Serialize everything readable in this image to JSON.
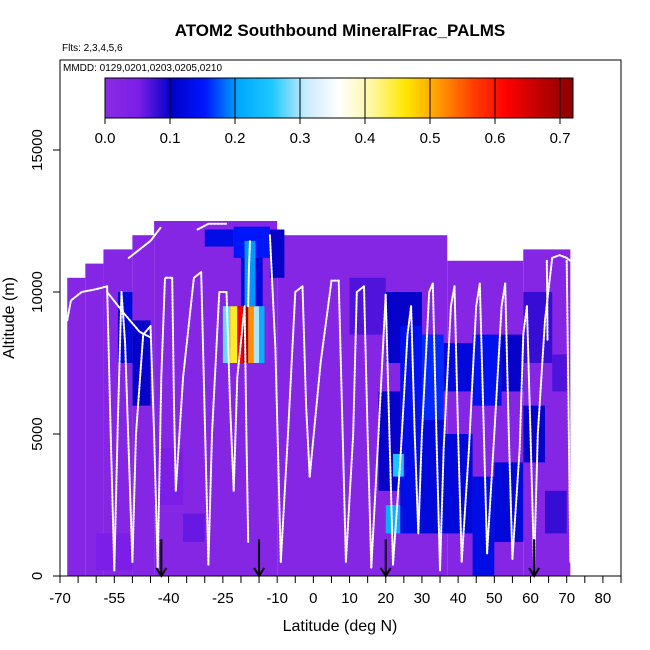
{
  "chart_data": {
    "type": "heatmap",
    "title": "ATOM2 Southbound MineralFrac_PALMS",
    "subtitle_flights": "Flts: 2,3,4,5,6",
    "subtitle_dates": "MMDD: 0129,0201,0203,0205,0210",
    "xlabel": "Latitude (deg N)",
    "ylabel": "Altitude (m)",
    "xlim": [
      -70,
      85
    ],
    "ylim": [
      0,
      17500
    ],
    "x_ticks": [
      -70,
      -55,
      -40,
      -25,
      -10,
      0,
      10,
      20,
      30,
      40,
      50,
      60,
      70,
      80
    ],
    "x_minor_ticks": [
      -65,
      -60,
      -50,
      -45,
      -35,
      -30,
      -20,
      -15,
      -5,
      5,
      15,
      25,
      35,
      45,
      55,
      65,
      75,
      85
    ],
    "y_ticks": [
      0,
      5000,
      10000,
      15000
    ],
    "grid": false,
    "colorbar": {
      "orientation": "horizontal",
      "placement": "top-inside",
      "min": 0.0,
      "max": 0.72,
      "ticks": [
        0.0,
        0.1,
        0.2,
        0.3,
        0.4,
        0.5,
        0.6,
        0.7
      ],
      "tick_labels": [
        "0.0",
        "0.1",
        "0.2",
        "0.3",
        "0.4",
        "0.5",
        "0.6",
        "0.7"
      ],
      "colors": [
        "#8a2be2",
        "#7c1ee8",
        "#0000c8",
        "#0018ff",
        "#00a8ff",
        "#1ec8ff",
        "#c8ebff",
        "#ffffff",
        "#fff7a0",
        "#ffe600",
        "#ff9900",
        "#ff4000",
        "#ff0000",
        "#c00000",
        "#8b0000"
      ]
    },
    "coverage_region": {
      "description_lat_range": [
        -68,
        71
      ],
      "description_alt_range": [
        0,
        12500
      ],
      "background_value": 0.02
    },
    "cells": [
      {
        "x0": -54,
        "x1": -50,
        "y0": 7500,
        "y1": 10000,
        "v": 0.12
      },
      {
        "x0": -50,
        "x1": -45,
        "y0": 6000,
        "y1": 9000,
        "v": 0.1
      },
      {
        "x0": -30,
        "x1": -22,
        "y0": 11600,
        "y1": 12200,
        "v": 0.13
      },
      {
        "x0": -22,
        "x1": -12,
        "y0": 11200,
        "y1": 12300,
        "v": 0.15
      },
      {
        "x0": -20,
        "x1": -14,
        "y0": 9000,
        "y1": 11200,
        "v": 0.12
      },
      {
        "x0": -24,
        "x1": -18,
        "y0": 8000,
        "y1": 9500,
        "v": 0.1
      },
      {
        "x0": -12,
        "x1": -8,
        "y0": 10500,
        "y1": 12200,
        "v": 0.1
      },
      {
        "x0": -44,
        "x1": -36,
        "y0": 2500,
        "y1": 4500,
        "v": 0.05
      },
      {
        "x0": -36,
        "x1": -30,
        "y0": 1200,
        "y1": 2200,
        "v": 0.06
      },
      {
        "x0": -60,
        "x1": -50,
        "y0": 200,
        "y1": 1500,
        "v": 0.05
      },
      {
        "x0": 10,
        "x1": 20,
        "y0": 8500,
        "y1": 10500,
        "v": 0.07
      },
      {
        "x0": 20,
        "x1": 30,
        "y0": 7500,
        "y1": 10000,
        "v": 0.1
      },
      {
        "x0": 24,
        "x1": 30,
        "y0": 5500,
        "y1": 8800,
        "v": 0.14
      },
      {
        "x0": 30,
        "x1": 36,
        "y0": 5500,
        "y1": 8500,
        "v": 0.16
      },
      {
        "x0": 36,
        "x1": 44,
        "y0": 6500,
        "y1": 8200,
        "v": 0.12
      },
      {
        "x0": 44,
        "x1": 52,
        "y0": 6000,
        "y1": 8500,
        "v": 0.14
      },
      {
        "x0": 52,
        "x1": 58,
        "y0": 6500,
        "y1": 8500,
        "v": 0.1
      },
      {
        "x0": 58,
        "x1": 66,
        "y0": 7500,
        "y1": 10000,
        "v": 0.08
      },
      {
        "x0": 66,
        "x1": 70,
        "y0": 6500,
        "y1": 7800,
        "v": 0.07
      },
      {
        "x0": 18,
        "x1": 24,
        "y0": 3000,
        "y1": 6500,
        "v": 0.1
      },
      {
        "x0": 24,
        "x1": 30,
        "y0": 1500,
        "y1": 5500,
        "v": 0.13
      },
      {
        "x0": 30,
        "x1": 36,
        "y0": 1500,
        "y1": 5500,
        "v": 0.12
      },
      {
        "x0": 36,
        "x1": 44,
        "y0": 1500,
        "y1": 5000,
        "v": 0.12
      },
      {
        "x0": 44,
        "x1": 50,
        "y0": 0,
        "y1": 3500,
        "v": 0.13
      },
      {
        "x0": 50,
        "x1": 58,
        "y0": 1200,
        "y1": 4000,
        "v": 0.12
      },
      {
        "x0": 58,
        "x1": 64,
        "y0": 4000,
        "y1": 6000,
        "v": 0.1
      },
      {
        "x0": 64,
        "x1": 70,
        "y0": 1500,
        "y1": 3000,
        "v": 0.08
      },
      {
        "x0": 20,
        "x1": 24,
        "y0": 1500,
        "y1": 2500,
        "v": 0.22
      },
      {
        "x0": 22,
        "x1": 25,
        "y0": 3500,
        "y1": 4300,
        "v": 0.25
      },
      {
        "x0": -25,
        "x1": -23,
        "y0": 7500,
        "y1": 9500,
        "v": 0.28
      },
      {
        "x0": -23,
        "x1": -21,
        "y0": 7500,
        "y1": 9500,
        "v": 0.45
      },
      {
        "x0": -21,
        "x1": -19.5,
        "y0": 7500,
        "y1": 9500,
        "v": 0.62
      },
      {
        "x0": -19.5,
        "x1": -18,
        "y0": 7500,
        "y1": 9500,
        "v": 0.7
      },
      {
        "x0": -18,
        "x1": -16.5,
        "y0": 7500,
        "y1": 9500,
        "v": 0.52
      },
      {
        "x0": -16.5,
        "x1": -15,
        "y0": 7500,
        "y1": 9500,
        "v": 0.3
      },
      {
        "x0": -15,
        "x1": -13.5,
        "y0": 7500,
        "y1": 9500,
        "v": 0.22
      },
      {
        "x0": -19,
        "x1": -16,
        "y0": 9500,
        "y1": 11800,
        "v": 0.2
      }
    ],
    "flight_profiles": [
      {
        "x": [
          -68,
          -67,
          -64,
          -60,
          -57
        ],
        "y": [
          9000,
          9700,
          10000,
          10100,
          10200
        ]
      },
      {
        "x": [
          -57,
          -56,
          -55
        ],
        "y": [
          10200,
          5000,
          200
        ]
      },
      {
        "x": [
          -55,
          -54,
          -53
        ],
        "y": [
          200,
          5500,
          10000
        ]
      },
      {
        "x": [
          -53,
          -52,
          -50
        ],
        "y": [
          10000,
          8200,
          500
        ]
      },
      {
        "x": [
          -50,
          -49,
          -47,
          -45
        ],
        "y": [
          500,
          5000,
          8500,
          8800
        ]
      },
      {
        "x": [
          -45,
          -44,
          -43
        ],
        "y": [
          8800,
          5000,
          300
        ]
      },
      {
        "x": [
          -43,
          -42,
          -41,
          -39
        ],
        "y": [
          300,
          7000,
          10500,
          10500
        ]
      },
      {
        "x": [
          -39,
          -38.5,
          -38
        ],
        "y": [
          10500,
          6000,
          3000
        ]
      },
      {
        "x": [
          -38,
          -36,
          -33,
          -31
        ],
        "y": [
          3000,
          7000,
          10500,
          10700
        ]
      },
      {
        "x": [
          -31,
          -30,
          -29
        ],
        "y": [
          10700,
          5500,
          400
        ]
      },
      {
        "x": [
          -29,
          -28,
          -26,
          -24
        ],
        "y": [
          400,
          5000,
          10000,
          10000
        ]
      },
      {
        "x": [
          -24,
          -23,
          -22
        ],
        "y": [
          10000,
          6000,
          3000
        ]
      },
      {
        "x": [
          -22,
          -21,
          -19
        ],
        "y": [
          3000,
          7000,
          9500
        ]
      },
      {
        "x": [
          -19,
          -18.5,
          -18
        ],
        "y": [
          9500,
          5000,
          1200
        ]
      },
      {
        "x": [
          -18,
          -17.8,
          -17.5
        ],
        "y": [
          9500,
          10800,
          11800
        ]
      },
      {
        "x": [
          -12,
          -10.5,
          -9
        ],
        "y": [
          12000,
          8000,
          500
        ]
      },
      {
        "x": [
          -9,
          -7,
          -5,
          -3
        ],
        "y": [
          500,
          5000,
          10000,
          10200
        ]
      },
      {
        "x": [
          -3,
          -2,
          -1
        ],
        "y": [
          10200,
          6000,
          3500
        ]
      },
      {
        "x": [
          -1,
          2,
          5,
          7
        ],
        "y": [
          3500,
          7500,
          10400,
          10400
        ]
      },
      {
        "x": [
          7,
          8,
          9
        ],
        "y": [
          10400,
          5500,
          500
        ]
      },
      {
        "x": [
          9,
          11,
          12,
          14
        ],
        "y": [
          500,
          5000,
          10000,
          10200
        ]
      },
      {
        "x": [
          14,
          15,
          16
        ],
        "y": [
          10200,
          5000,
          300
        ]
      },
      {
        "x": [
          16,
          18,
          20
        ],
        "y": [
          300,
          5000,
          9900
        ]
      },
      {
        "x": [
          20,
          21,
          22
        ],
        "y": [
          9900,
          5000,
          400
        ]
      },
      {
        "x": [
          22,
          24,
          26,
          27
        ],
        "y": [
          400,
          4000,
          8500,
          9500
        ]
      },
      {
        "x": [
          27,
          28,
          29
        ],
        "y": [
          9500,
          5000,
          1500
        ]
      },
      {
        "x": [
          29,
          30,
          32,
          33
        ],
        "y": [
          1500,
          5000,
          10000,
          10300
        ]
      },
      {
        "x": [
          33,
          34,
          35
        ],
        "y": [
          10300,
          5000,
          200
        ]
      },
      {
        "x": [
          35,
          36,
          38,
          39
        ],
        "y": [
          200,
          4500,
          9500,
          10200
        ]
      },
      {
        "x": [
          39,
          40,
          41
        ],
        "y": [
          10200,
          5000,
          500
        ]
      },
      {
        "x": [
          41,
          43,
          45,
          46
        ],
        "y": [
          500,
          4500,
          9500,
          10300
        ]
      },
      {
        "x": [
          46,
          47,
          48
        ],
        "y": [
          10300,
          5500,
          800
        ]
      },
      {
        "x": [
          48,
          50,
          52,
          53
        ],
        "y": [
          800,
          5000,
          9500,
          10300
        ]
      },
      {
        "x": [
          53,
          54,
          55
        ],
        "y": [
          10300,
          5000,
          600
        ]
      },
      {
        "x": [
          55,
          57,
          58,
          59
        ],
        "y": [
          600,
          4500,
          8500,
          9500
        ]
      },
      {
        "x": [
          59,
          60,
          61
        ],
        "y": [
          9500,
          5000,
          300
        ]
      },
      {
        "x": [
          61,
          62,
          64,
          66
        ],
        "y": [
          300,
          5000,
          9000,
          11200
        ]
      },
      {
        "x": [
          66,
          68,
          70,
          71
        ],
        "y": [
          11200,
          11300,
          11200,
          11100
        ]
      },
      {
        "x": [
          70,
          70.5,
          71
        ],
        "y": [
          11100,
          6000,
          500
        ]
      },
      {
        "x": [
          64.5,
          64.6,
          64.7
        ],
        "y": [
          11100,
          10000,
          8300
        ]
      },
      {
        "x": [
          -57,
          -52,
          -48,
          -45
        ],
        "y": [
          10000,
          9200,
          8600,
          8400
        ]
      },
      {
        "x": [
          -32,
          -29,
          -27,
          -24
        ],
        "y": [
          12200,
          12400,
          12400,
          12400
        ]
      },
      {
        "x": [
          -51,
          -45,
          -42
        ],
        "y": [
          11200,
          11800,
          12300
        ]
      }
    ],
    "markers": {
      "type": "down-arrow",
      "x": [
        -42,
        -15,
        20,
        61
      ],
      "y_top": 800,
      "y_bottom": 0
    }
  }
}
